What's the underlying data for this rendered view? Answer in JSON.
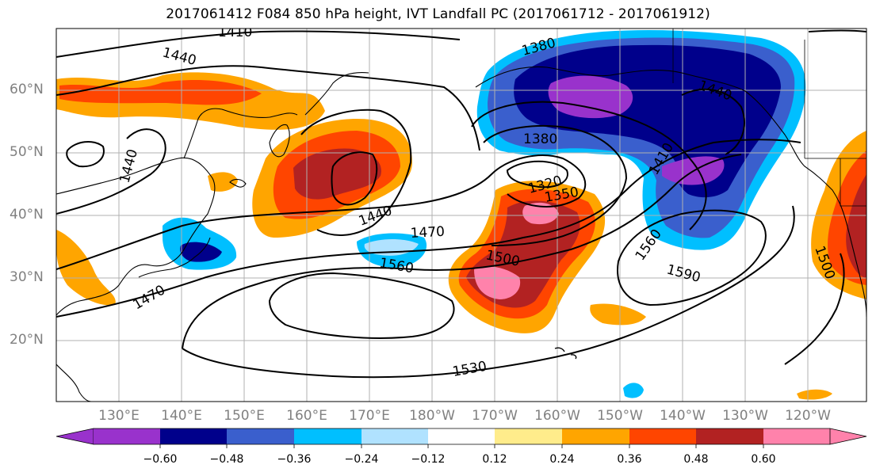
{
  "title": "2017061412 F084 850 hPa height, IVT Landfall PC (2017061712 - 2017061912)",
  "lat_labels": [
    "60°N",
    "50°N",
    "40°N",
    "30°N",
    "20°N"
  ],
  "lon_labels": [
    "130°E",
    "140°E",
    "150°E",
    "160°E",
    "170°E",
    "180°W",
    "170°W",
    "160°W",
    "150°W",
    "140°W",
    "130°W",
    "120°W"
  ],
  "contour_labels": [
    "1410",
    "1440",
    "1380",
    "1440",
    "1440",
    "1380",
    "1320",
    "1350",
    "1410",
    "1440",
    "1470",
    "1560",
    "1500",
    "1560",
    "1590",
    "1470",
    "1530",
    "1500"
  ],
  "colorbar": {
    "ticks": [
      "−0.60",
      "−0.48",
      "−0.36",
      "−0.24",
      "−0.12",
      "0.12",
      "0.24",
      "0.36",
      "0.48",
      "0.60"
    ],
    "colors": [
      "#9932cc",
      "#00008b",
      "#3a5fcd",
      "#00bfff",
      "#b0e2ff",
      "#ffffff",
      "#ffec8b",
      "#ffa500",
      "#ff4500",
      "#b22222",
      "#ff82ab"
    ]
  },
  "palette": {
    "coast": "#000000",
    "grid": "#b0b0b0",
    "contour": "#000000"
  }
}
